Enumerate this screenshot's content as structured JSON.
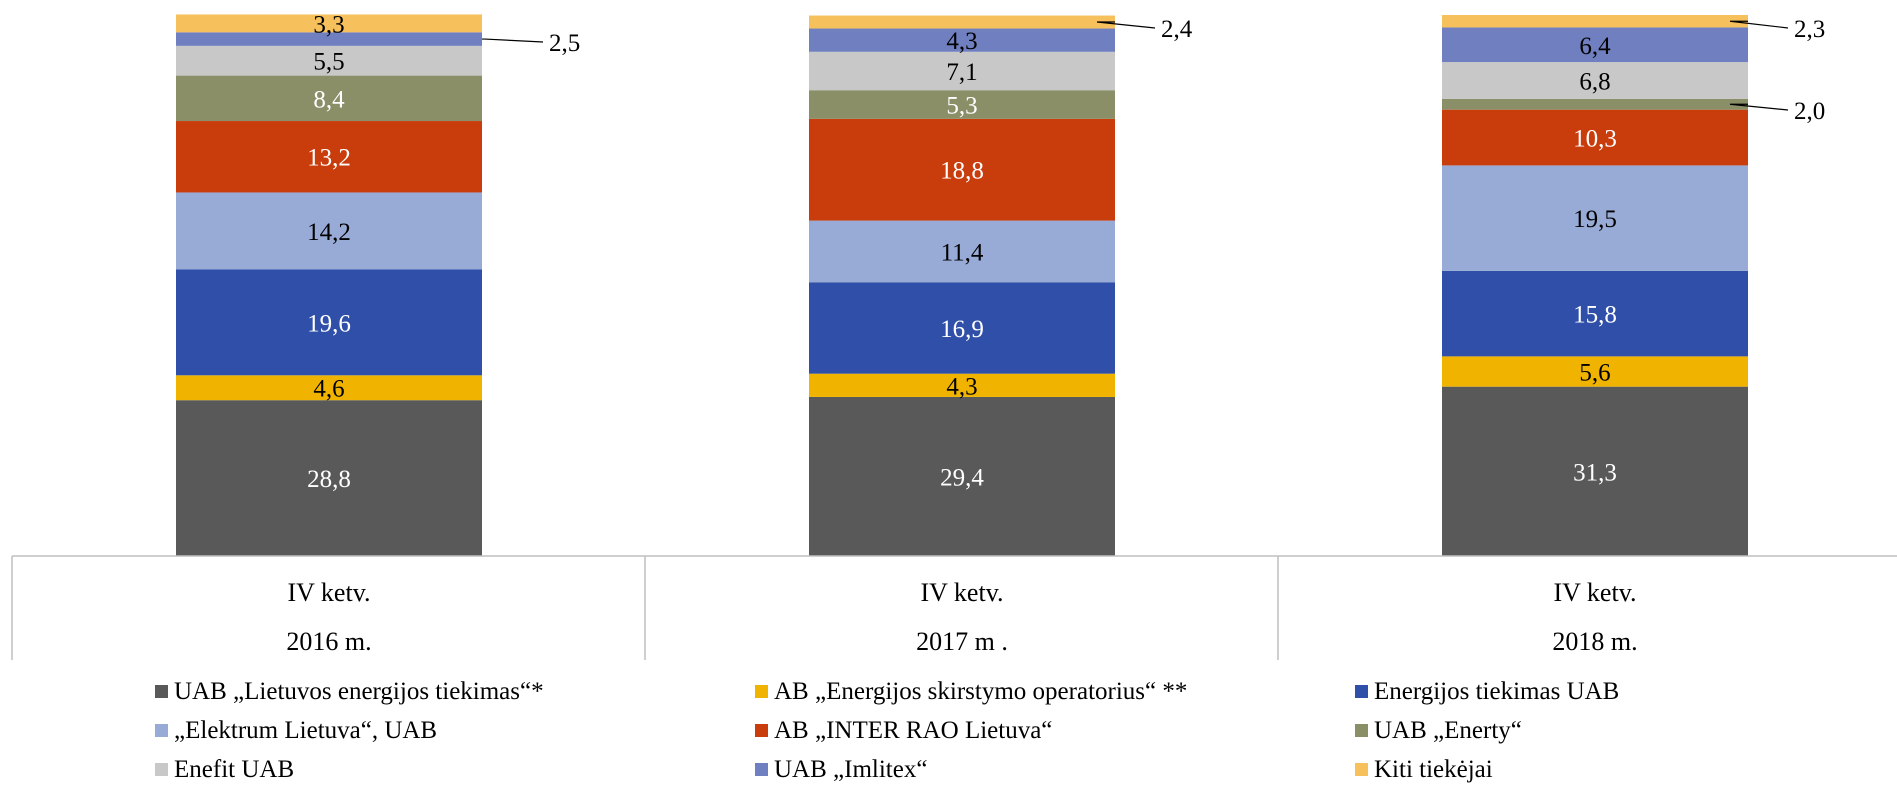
{
  "chart_data": {
    "type": "bar",
    "stacked": true,
    "title": "",
    "xlabel": "",
    "ylabel": "",
    "categories": [
      {
        "line1": "IV ketv.",
        "line2": "2016 m."
      },
      {
        "line1": "IV ketv.",
        "line2": "2017 m ."
      },
      {
        "line1": "IV ketv.",
        "line2": "2018 m."
      }
    ],
    "series": [
      {
        "name": "UAB „Lietuvos energijos tiekimas“*",
        "values": [
          28.8,
          29.4,
          31.3
        ],
        "labels": [
          "28,8",
          "29,4",
          "31,3"
        ],
        "color": "#595959",
        "label_color": "#ffffff"
      },
      {
        "name": "AB „Energijos skirstymo operatorius“ **",
        "values": [
          4.6,
          4.3,
          5.6
        ],
        "labels": [
          "4,6",
          "4,3",
          "5,6"
        ],
        "color": "#f0b400",
        "label_color": "#000000"
      },
      {
        "name": "Energijos tiekimas UAB",
        "values": [
          19.6,
          16.9,
          15.8
        ],
        "labels": [
          "19,6",
          "16,9",
          "15,8"
        ],
        "color": "#2f4fa8",
        "label_color": "#ffffff"
      },
      {
        "name": "„Elektrum Lietuva“, UAB",
        "values": [
          14.2,
          11.4,
          19.5
        ],
        "labels": [
          "14,2",
          "11,4",
          "19,5"
        ],
        "color": "#98aad6",
        "label_color": "#000000"
      },
      {
        "name": "AB „INTER RAO Lietuva“",
        "values": [
          13.2,
          18.8,
          10.3
        ],
        "labels": [
          "13,2",
          "18,8",
          "10,3"
        ],
        "color": "#c93d0c",
        "label_color": "#ffffff"
      },
      {
        "name": "UAB „Enerty“",
        "values": [
          8.4,
          5.3,
          2.0
        ],
        "labels": [
          "8,4",
          "5,3",
          "2,0"
        ],
        "color": "#8a8f68",
        "label_color": "#ffffff"
      },
      {
        "name": "Enefit UAB",
        "values": [
          5.5,
          7.1,
          6.8
        ],
        "labels": [
          "5,5",
          "7,1",
          "6,8"
        ],
        "color": "#c8c8c8",
        "label_color": "#000000"
      },
      {
        "name": "UAB „Imlitex“",
        "values": [
          2.5,
          4.3,
          6.4
        ],
        "labels": [
          "2,5",
          "4,3",
          "6,4"
        ],
        "color": "#6f7fbf",
        "label_color": "#000000"
      },
      {
        "name": "Kiti tiekėjai",
        "values": [
          3.3,
          2.4,
          2.3
        ],
        "labels": [
          "3,3",
          "2,4",
          "2,3"
        ],
        "color": "#f6c15c",
        "label_color": "#000000"
      }
    ],
    "ylim": [
      0,
      100
    ],
    "grid": false,
    "legend_position": "bottom"
  }
}
